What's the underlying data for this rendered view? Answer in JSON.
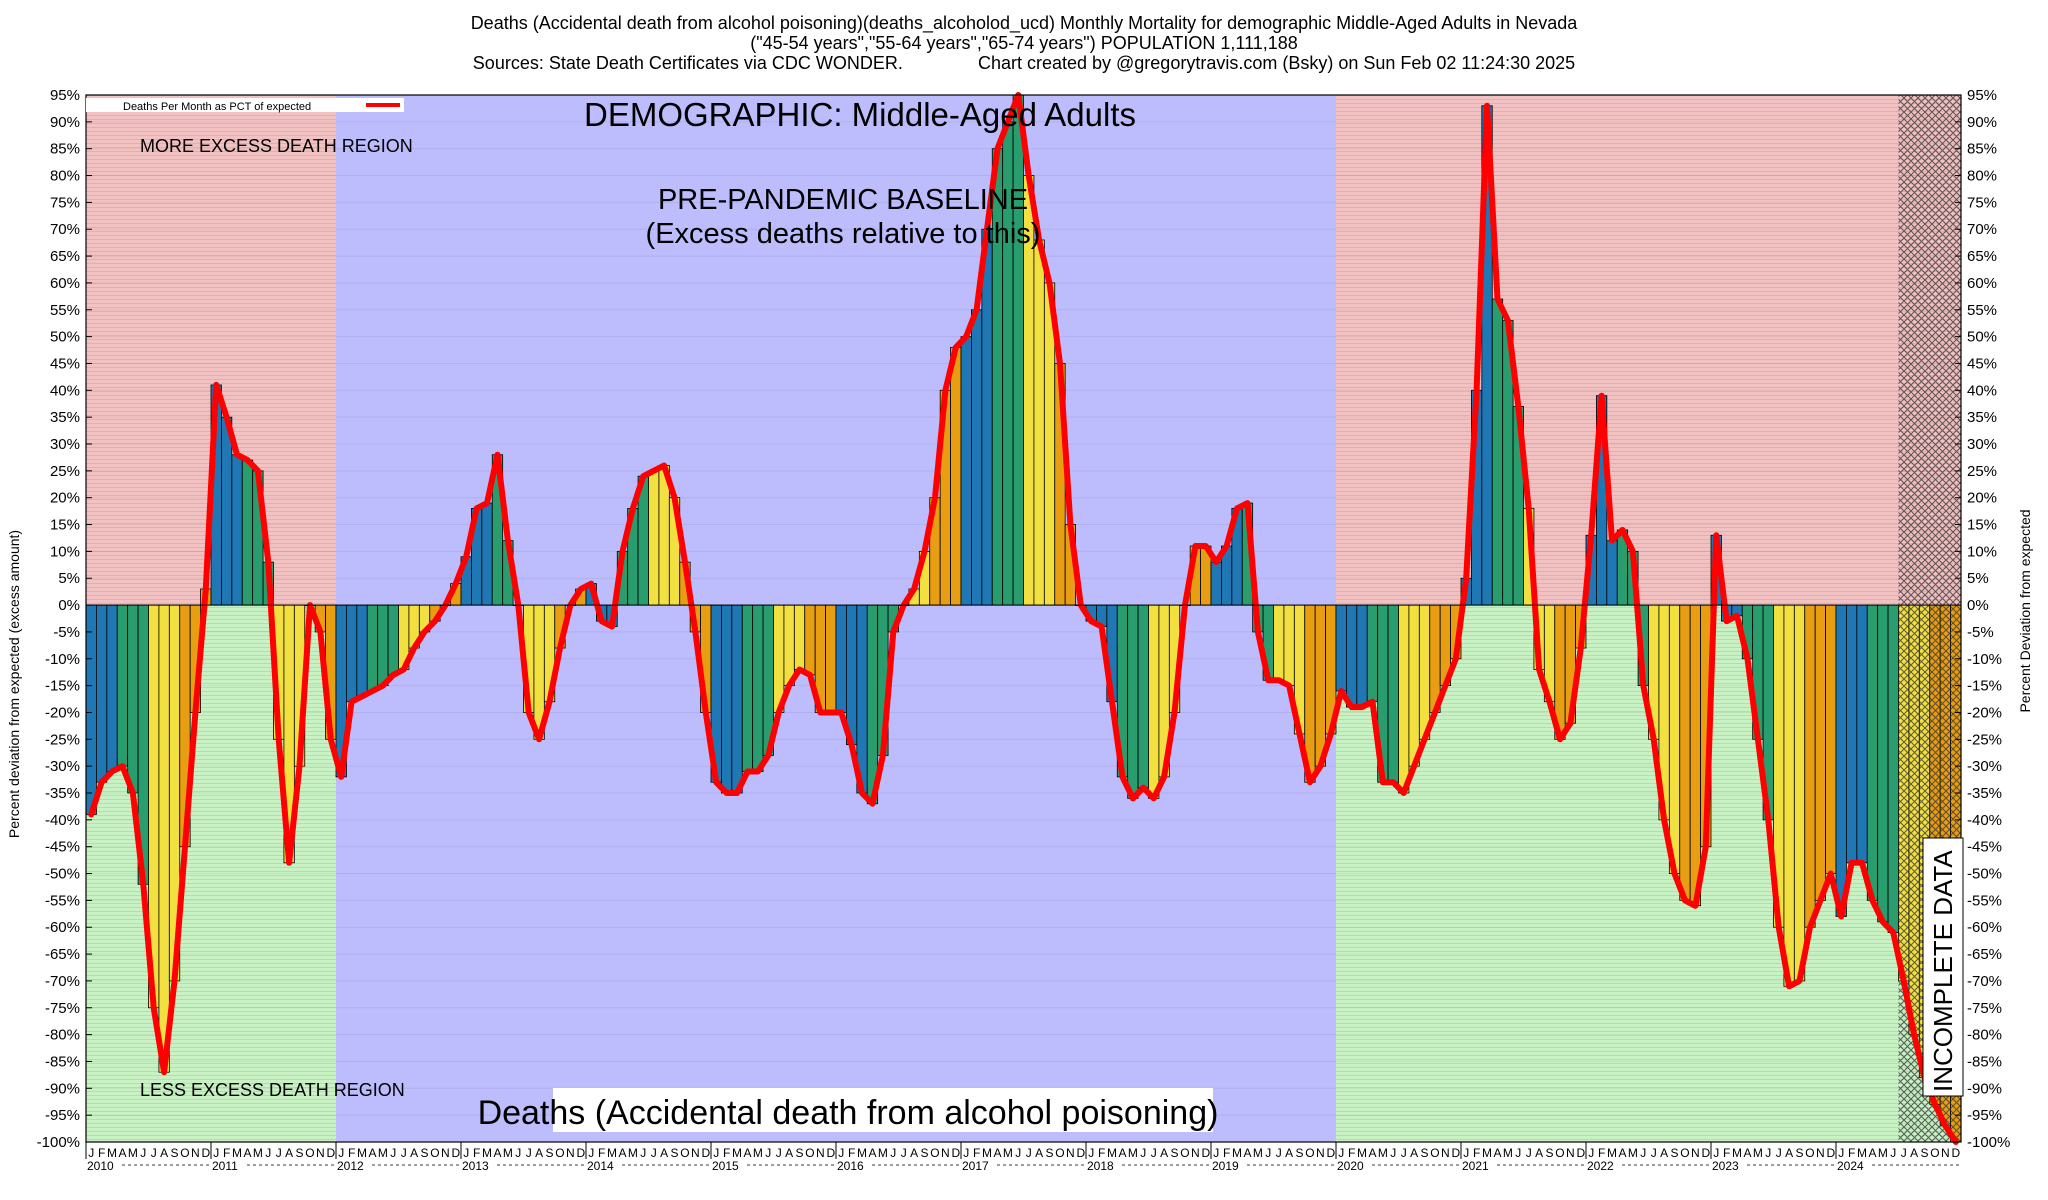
{
  "header": {
    "line1": "Deaths (Accidental death from alcohol poisoning)(deaths_alcoholod_ucd) Monthly Mortality for demographic Middle-Aged Adults in Nevada",
    "line2": "(\"45-54 years\",\"55-64 years\",\"65-74 years\") POPULATION 1,111,188",
    "line3_left": "Sources: State Death Certificates via CDC WONDER.",
    "line3_right": "Chart created by @gregorytravis.com (Bsky) on Sun Feb 02 11:24:30 2025"
  },
  "annotations": {
    "demographic": "DEMOGRAPHIC: Middle-Aged Adults",
    "more_excess": "MORE EXCESS DEATH REGION",
    "less_excess": "LESS EXCESS DEATH REGION",
    "baseline_line1": "PRE-PANDEMIC BASELINE",
    "baseline_line2": "(Excess deaths relative to this)",
    "bottom_title": "Deaths (Accidental death from alcohol poisoning)",
    "incomplete": "INCOMPLETE DATA"
  },
  "colors": {
    "more_region": "#f2c2c2",
    "less_region": "#c8f2c4",
    "baseline_band": "#bdbcfd",
    "line": "#ff0000",
    "bar_palette": [
      "#1f77b4",
      "#2a9d6e",
      "#f2e040",
      "#e89e12"
    ]
  },
  "chart_data": {
    "type": "bar",
    "title": "Deaths (Accidental death from alcohol poisoning)(deaths_alcoholod_ucd) Monthly Mortality for demographic Middle-Aged Adults in Nevada",
    "ylabel_left": "Percent deviation from expected (excess amount)",
    "ylabel_right": "Percent Deviation from expected",
    "legend": "Deaths Per Month as PCT of expected",
    "legend_position": "top-left",
    "ylim": [
      -100,
      95
    ],
    "ytick_step": 5,
    "ytick_suffix": "%",
    "grid": true,
    "x_start": "2010-01",
    "x_end": "2024-12",
    "month_letters": [
      "J",
      "F",
      "M",
      "A",
      "M",
      "J",
      "J",
      "A",
      "S",
      "O",
      "N",
      "D"
    ],
    "years": [
      "2010",
      "2011",
      "2012",
      "2013",
      "2014",
      "2015",
      "2016",
      "2017",
      "2018",
      "2019",
      "2020",
      "2021",
      "2022",
      "2023",
      "2024"
    ],
    "baseline_period": [
      "2012-01",
      "2019-12"
    ],
    "incomplete_from": "2024-07",
    "values": [
      -39,
      -33,
      -31,
      -30,
      -35,
      -52,
      -75,
      -87,
      -70,
      -45,
      -20,
      3,
      41,
      35,
      28,
      27,
      25,
      8,
      -25,
      -48,
      -30,
      0,
      -5,
      -25,
      -32,
      -18,
      -17,
      -16,
      -15,
      -13,
      -12,
      -8,
      -5,
      -3,
      0,
      4,
      9,
      18,
      19,
      28,
      12,
      0,
      -20,
      -25,
      -18,
      -8,
      0,
      3,
      4,
      -3,
      -4,
      10,
      18,
      24,
      25,
      26,
      20,
      8,
      -5,
      -20,
      -33,
      -35,
      -35,
      -31,
      -31,
      -28,
      -20,
      -15,
      -12,
      -13,
      -20,
      -20,
      -20,
      -26,
      -35,
      -37,
      -28,
      -5,
      0,
      3,
      10,
      20,
      40,
      48,
      50,
      55,
      70,
      85,
      90,
      95,
      80,
      68,
      60,
      45,
      15,
      0,
      -3,
      -4,
      -18,
      -32,
      -36,
      -34,
      -36,
      -32,
      -20,
      0,
      11,
      11,
      8,
      11,
      18,
      19,
      -5,
      -14,
      -14,
      -15,
      -24,
      -33,
      -30,
      -24,
      -16,
      -19,
      -19,
      -18,
      -33,
      -33,
      -35,
      -30,
      -25,
      -20,
      -15,
      -10,
      5,
      40,
      93,
      57,
      53,
      37,
      18,
      -12,
      -18,
      -25,
      -22,
      -8,
      13,
      39,
      12,
      14,
      10,
      -15,
      -25,
      -40,
      -50,
      -55,
      -56,
      -45,
      13,
      -3,
      -2,
      -10,
      -25,
      -40,
      -60,
      -71,
      -70,
      -60,
      -55,
      -50,
      -58,
      -48,
      -48,
      -55,
      -59,
      -61,
      -70,
      -80,
      -88,
      -93,
      -97,
      -100
    ]
  }
}
